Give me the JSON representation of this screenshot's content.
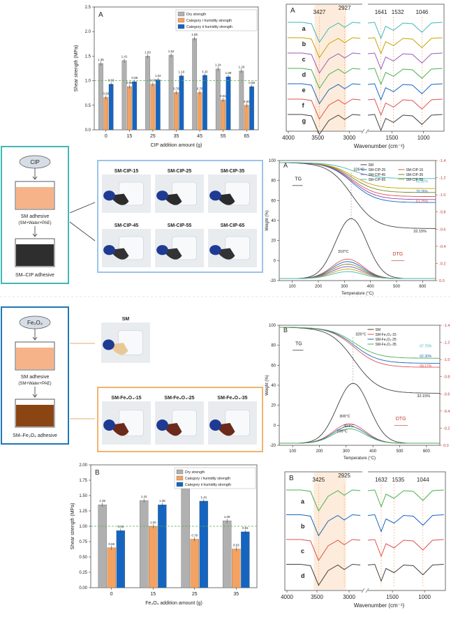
{
  "colors": {
    "dry": "#b0b0b0",
    "cat1": "#f4a261",
    "cat2": "#1565c0",
    "ref": "#4caf50",
    "flow_top": "#3fb8b8",
    "flow_bot": "#1f78b4",
    "photo_top": "#9cc3ea",
    "photo_bot": "#f2b36d",
    "shade": "#fde7d2"
  },
  "flow_top": {
    "reagent": "CIP",
    "adhesive": "SM adhesive",
    "composition": "(SM+Water+PAE)",
    "product": "SM–CIP adhesive",
    "liquid_color": "#f6b389",
    "product_color": "#2e2e2e"
  },
  "flow_bot": {
    "reagent": "Fe₃O₄",
    "adhesive": "SM adhesive",
    "composition": "(SM+Water+PAE)",
    "product": "SM–Fe₃O₄ adhesive",
    "liquid_color": "#f6b389",
    "product_color": "#8b4513"
  },
  "photos_top": {
    "row1": [
      "SM-CIP-15",
      "SM-CIP-25",
      "SM-CIP-35"
    ],
    "row2": [
      "SM-CIP-45",
      "SM-CIP-55",
      "SM-CIP-65"
    ]
  },
  "photos_bot": {
    "sm": "SM",
    "row": [
      "SM-Fe₃O₄-15",
      "SM-Fe₃O₄-25",
      "SM-Fe₃O₄-35"
    ]
  },
  "chart_data": [
    {
      "id": "bar_cip",
      "type": "bar",
      "panel": "A",
      "xlabel": "CIP addition amount (g)",
      "ylabel": "Shear strength (MPa)",
      "ylim": [
        0,
        2.5
      ],
      "yticks": [
        0,
        0.5,
        1.0,
        1.5,
        2.0,
        2.5
      ],
      "reference_line": 1.0,
      "legend_position": "top-right",
      "categories": [
        "0",
        "15",
        "25",
        "35",
        "45",
        "55",
        "65"
      ],
      "series": [
        {
          "name": "Dry strength",
          "values": [
            1.35,
            1.41,
            1.5,
            1.52,
            1.86,
            1.24,
            1.2
          ],
          "labels": [
            "1.35",
            "1.41",
            "1.50",
            "1.52",
            "1.86",
            "1.24",
            "1.20"
          ]
        },
        {
          "name": "Category Ⅰ humidity strength",
          "values": [
            0.66,
            0.88,
            0.93,
            0.76,
            0.76,
            0.61,
            0.5
          ],
          "labels": [
            "0.66",
            "0.88",
            "0.93",
            "0.76",
            "0.76",
            "0.61",
            "0.50"
          ]
        },
        {
          "name": "Category Ⅱ humidity strength",
          "values": [
            0.93,
            0.98,
            1.02,
            1.1,
            1.11,
            1.08,
            0.88
          ],
          "labels": [
            "0.93",
            "0.98",
            "1.02",
            "1.10",
            "1.11",
            "1.08",
            "0.88"
          ]
        }
      ]
    },
    {
      "id": "ftir_cip",
      "type": "line",
      "panel": "A",
      "xlabel": "Wavenumber (cm⁻¹)",
      "xticks": [
        "4000",
        "3500",
        "3000",
        "1500",
        "1000"
      ],
      "peaks": [
        "3427",
        "2927",
        "1641",
        "1532",
        "1046"
      ],
      "series_labels": [
        "a",
        "b",
        "c",
        "d",
        "e",
        "f",
        "g"
      ],
      "colors": [
        "#3fb8b8",
        "#c8a200",
        "#9b59b6",
        "#4caf50",
        "#1565c0",
        "#e05050",
        "#404040"
      ]
    },
    {
      "id": "tg_cip",
      "type": "line",
      "panel": "A",
      "xlabel": "Temperature (°C)",
      "ylabel": "Weight (%)",
      "y2label": "Deriv.weight (%/°C)",
      "xlim": [
        50,
        650
      ],
      "ylim": [
        -20,
        100
      ],
      "y2lim": [
        0,
        -1.4
      ],
      "xticks": [
        100,
        200,
        300,
        400,
        500,
        600
      ],
      "yticks": [
        -20,
        0,
        20,
        40,
        60,
        80,
        100
      ],
      "y2ticks": [
        "0.0",
        "-0.2",
        "-0.4",
        "-0.6",
        "-0.8",
        "-1.0",
        "-1.2",
        "-1.4"
      ],
      "legend": [
        "SM",
        "SM-CIP-15",
        "SM-CIP-25",
        "SM-CIP-35",
        "SM-CIP-45",
        "SM-CIP-55",
        "SM-CIP-65"
      ],
      "legend_colors": [
        "#404040",
        "#e05050",
        "#1565c0",
        "#6b8e23",
        "#8e44ad",
        "#c8a200",
        "#3fb8b8"
      ],
      "tg_residue": [
        32,
        64,
        58,
        68,
        61,
        72,
        82
      ],
      "labels": {
        "tg": "TG",
        "dtg": "DTG",
        "t1": "326°C",
        "t2": "310°C",
        "r_sm": "32.15%",
        "r1": "82.82%",
        "r2": "70.26%",
        "r3": "61.25%"
      }
    },
    {
      "id": "tg_fe",
      "type": "line",
      "panel": "B",
      "xlabel": "Temperature (°C)",
      "ylabel": "Weight (%)",
      "y2label": "Deriv.weight (%/°C)",
      "xlim": [
        50,
        650
      ],
      "ylim": [
        -20,
        100
      ],
      "y2lim": [
        0,
        -1.4
      ],
      "xticks": [
        100,
        200,
        300,
        400,
        500,
        600
      ],
      "yticks": [
        -20,
        0,
        20,
        40,
        60,
        80,
        100
      ],
      "y2ticks": [
        "0.0",
        "-0.2",
        "-0.4",
        "-0.6",
        "-0.8",
        "-1.0",
        "-1.2",
        "-1.4"
      ],
      "legend": [
        "SM",
        "SM-Fe₃O₄-15",
        "SM-Fe₃O₄-25",
        "SM-Fe₃O₄-35"
      ],
      "legend_colors": [
        "#404040",
        "#e05050",
        "#1565c0",
        "#4caf50"
      ],
      "tg_residue": [
        32,
        58,
        62,
        67
      ],
      "labels": {
        "tg": "TG",
        "dtg": "DTG",
        "t1": "326°C",
        "t2": "306°C",
        "t3": "304°C",
        "t4": "299°C",
        "r_sm": "32.15%",
        "r1": "67.75%",
        "r2": "62.30%",
        "r3": "58.12%"
      }
    },
    {
      "id": "bar_fe",
      "type": "bar",
      "panel": "B",
      "xlabel": "Fe₃O₄ addition amount (g)",
      "ylabel": "Shear strength (MPa)",
      "ylim": [
        0,
        2.0
      ],
      "yticks": [
        0,
        0.25,
        0.5,
        0.75,
        1.0,
        1.25,
        1.5,
        1.75,
        2.0
      ],
      "reference_line": 1.0,
      "legend_position": "top-right",
      "categories": [
        "0",
        "15",
        "25",
        "35"
      ],
      "series": [
        {
          "name": "Dry strength",
          "values": [
            1.35,
            1.42,
            1.65,
            1.09
          ],
          "labels": [
            "1.35",
            "1.42",
            "1.65",
            "1.09"
          ]
        },
        {
          "name": "Category Ⅰ humidity strength",
          "values": [
            0.65,
            1.0,
            0.79,
            0.63
          ],
          "labels": [
            "0.65",
            "1.00",
            "0.79",
            "0.63"
          ]
        },
        {
          "name": "Category Ⅱ humidity strength",
          "values": [
            0.93,
            1.35,
            1.41,
            0.91
          ],
          "labels": [
            "0.93",
            "1.35",
            "1.41",
            "0.91"
          ]
        }
      ]
    },
    {
      "id": "ftir_fe",
      "type": "line",
      "panel": "B",
      "xlabel": "Wavenumber (cm⁻¹)",
      "xticks": [
        "4000",
        "3500",
        "3000",
        "1500",
        "1000"
      ],
      "peaks": [
        "3425",
        "2925",
        "1632",
        "1535",
        "1044"
      ],
      "series_labels": [
        "a",
        "b",
        "c",
        "d"
      ],
      "colors": [
        "#4caf50",
        "#1565c0",
        "#e05050",
        "#404040"
      ]
    }
  ]
}
